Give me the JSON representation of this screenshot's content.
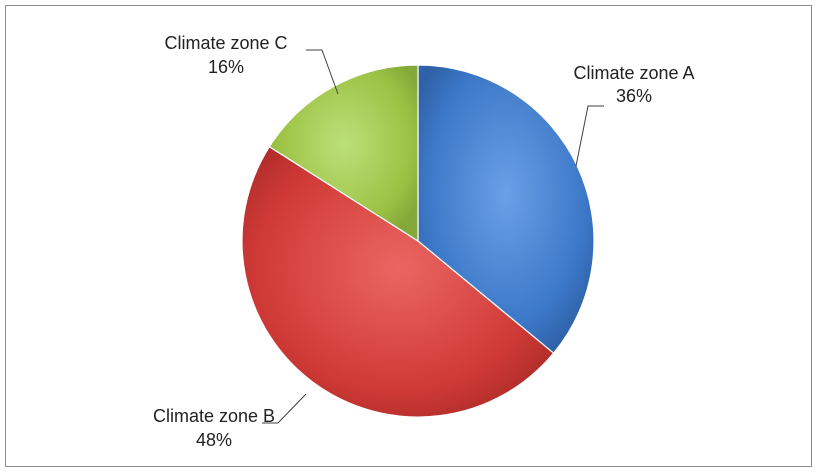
{
  "chart_data": {
    "type": "pie",
    "series": [
      {
        "values": [
          36,
          48,
          16
        ]
      }
    ],
    "categories": [
      "Climate zone A",
      "Climate zone B",
      "Climate zone C"
    ],
    "labels": [
      {
        "name": "Climate zone A",
        "percent": "36%"
      },
      {
        "name": "Climate zone B",
        "percent": "48%"
      },
      {
        "name": "Climate zone C",
        "percent": "16%"
      }
    ],
    "colors": [
      "#3c78c8",
      "#d03a36",
      "#9cc244"
    ],
    "legend": "none",
    "title": ""
  }
}
